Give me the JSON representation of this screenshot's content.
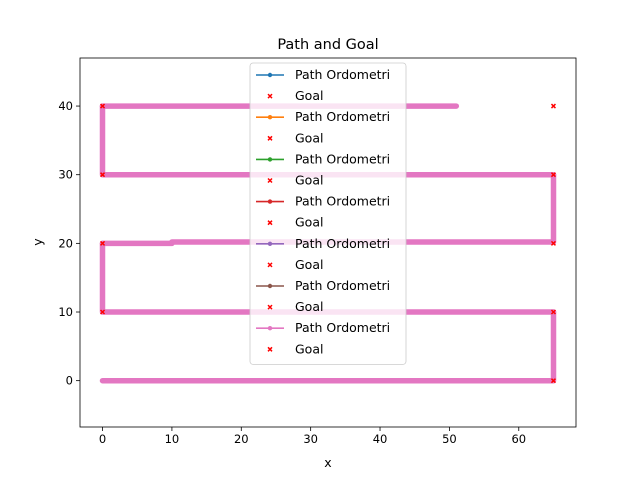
{
  "chart_data": {
    "type": "line",
    "title": "Path and Goal",
    "xlabel": "x",
    "ylabel": "y",
    "xlim": [
      -3.25,
      68.25
    ],
    "ylim": [
      -6.75,
      47
    ],
    "xticks": [
      0,
      10,
      20,
      30,
      40,
      50,
      60
    ],
    "yticks": [
      0,
      10,
      20,
      30,
      40
    ],
    "grid": false,
    "legend_position": "top-center",
    "goal_color": "#ff0000",
    "segments": [
      {
        "x": [
          0,
          65,
          65
        ],
        "y": [
          0,
          0,
          10
        ]
      },
      {
        "x": [
          65,
          0,
          0
        ],
        "y": [
          10,
          10,
          20
        ]
      },
      {
        "x": [
          0,
          10
        ],
        "y": [
          20,
          20
        ]
      },
      {
        "x": [
          10,
          65,
          65
        ],
        "y": [
          20.2,
          20.2,
          30
        ]
      },
      {
        "x": [
          65,
          0,
          0
        ],
        "y": [
          30,
          30,
          40
        ]
      },
      {
        "x": [
          0,
          51
        ],
        "y": [
          40,
          40
        ]
      }
    ],
    "goals": {
      "x": [
        65,
        65,
        0,
        0,
        65,
        65,
        0,
        0,
        65
      ],
      "y": [
        0,
        10,
        10,
        20,
        20,
        30,
        30,
        40,
        40
      ]
    },
    "legend": [
      {
        "label": "Path Ordometri",
        "kind": "line",
        "color": "#1f77b4"
      },
      {
        "label": "Goal",
        "kind": "marker",
        "color": "#ff0000"
      },
      {
        "label": "Path Ordometri",
        "kind": "line",
        "color": "#ff7f0e"
      },
      {
        "label": "Goal",
        "kind": "marker",
        "color": "#ff0000"
      },
      {
        "label": "Path Ordometri",
        "kind": "line",
        "color": "#2ca02c"
      },
      {
        "label": "Goal",
        "kind": "marker",
        "color": "#ff0000"
      },
      {
        "label": "Path Ordometri",
        "kind": "line",
        "color": "#d62728"
      },
      {
        "label": "Goal",
        "kind": "marker",
        "color": "#ff0000"
      },
      {
        "label": "Path Ordometri",
        "kind": "line",
        "color": "#9467bd"
      },
      {
        "label": "Goal",
        "kind": "marker",
        "color": "#ff0000"
      },
      {
        "label": "Path Ordometri",
        "kind": "line",
        "color": "#8c564b"
      },
      {
        "label": "Goal",
        "kind": "marker",
        "color": "#ff0000"
      },
      {
        "label": "Path Ordometri",
        "kind": "line",
        "color": "#e377c2"
      },
      {
        "label": "Goal",
        "kind": "marker",
        "color": "#ff0000"
      }
    ],
    "visible_path_color": "#e377c2"
  }
}
